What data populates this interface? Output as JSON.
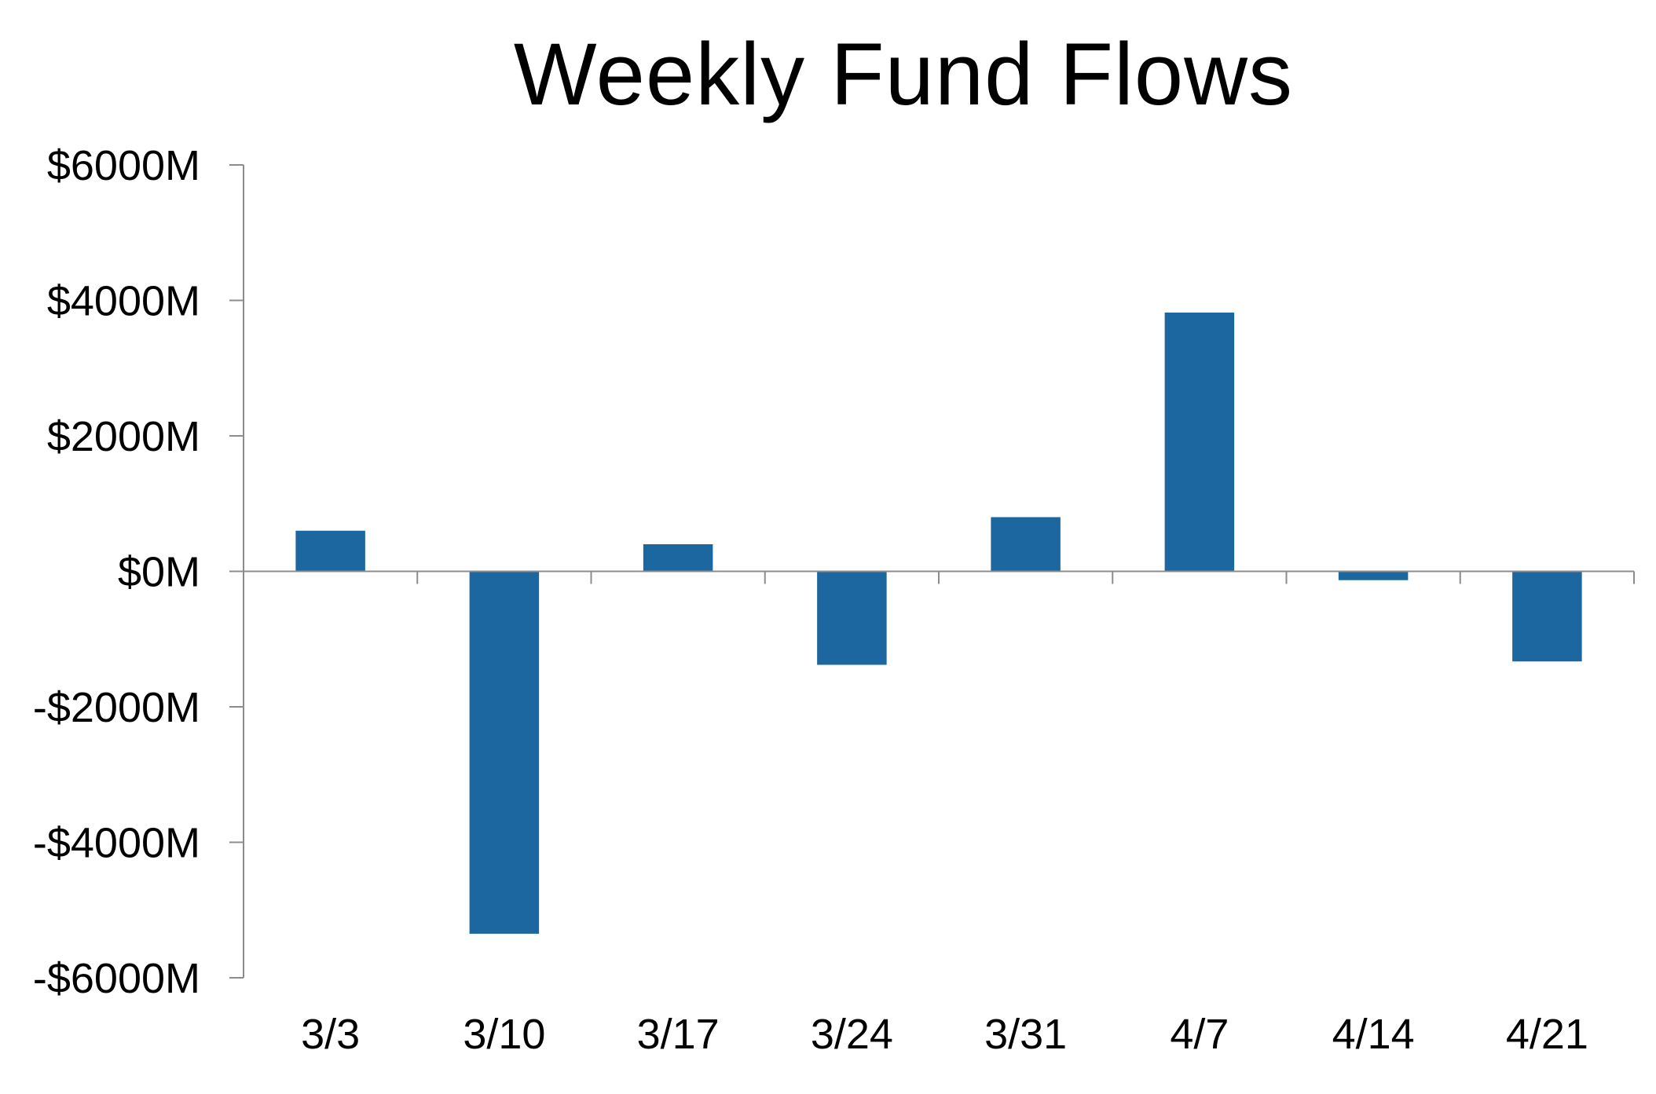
{
  "chart_data": {
    "type": "bar",
    "title": "Weekly Fund Flows",
    "xlabel": "",
    "ylabel": "",
    "categories": [
      "3/3",
      "3/10",
      "3/17",
      "3/24",
      "3/31",
      "4/7",
      "4/14",
      "4/21"
    ],
    "values": [
      600,
      -5350,
      400,
      -1380,
      800,
      3820,
      -130,
      -1330
    ],
    "ylim": [
      -6000,
      6000
    ],
    "yticks": [
      6000,
      4000,
      2000,
      0,
      -2000,
      -4000,
      -6000
    ],
    "ytick_labels": [
      "$6000M",
      "$4000M",
      "$2000M",
      "$0M",
      "-$2000M",
      "-$4000M",
      "-$6000M"
    ],
    "grid": false,
    "legend": "none",
    "colors": {
      "bar": "#1c67a0",
      "axis": "#8c8c8c"
    }
  }
}
